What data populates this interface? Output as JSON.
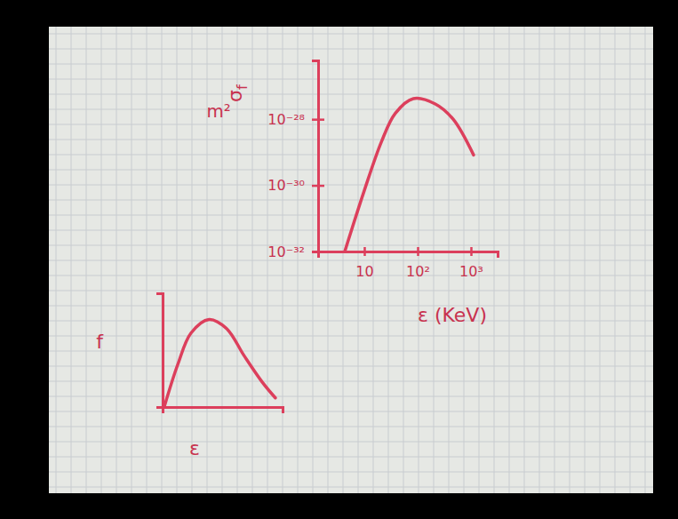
{
  "chart_data": [
    {
      "type": "line",
      "log": true,
      "ylabel": "σf",
      "ylabel_units": "m²",
      "xlabel": "ε (KeV)",
      "x": [
        4.3,
        10,
        21,
        38,
        83,
        214,
        464,
        1120
      ],
      "values": [
        1e-32,
        7e-31,
        2.1e-29,
        1.5e-28,
        4.2e-28,
        2.9e-28,
        1e-28,
        8.3e-30
      ],
      "xlim": [
        1.36,
        3162
      ],
      "ylim": [
        1e-32,
        6e-27
      ],
      "xticks": [
        10,
        {
          "value": 100,
          "label": "10²"
        },
        {
          "value": 1000,
          "label": "10³"
        }
      ],
      "yticks": [
        {
          "value": 1e-32,
          "label": "10⁻³²"
        },
        {
          "value": 1e-30,
          "label": "10⁻³⁰"
        },
        {
          "value": 1e-28,
          "label": "10⁻²⁸"
        }
      ],
      "color": "#dc3f5c"
    },
    {
      "type": "line",
      "ylabel": "f",
      "xlabel": "ε",
      "x": [
        0.04,
        0.38,
        0.71,
        1.16,
        1.6,
        2.04,
        2.49,
        2.82
      ],
      "values": [
        0,
        0.375,
        0.65,
        0.77,
        0.69,
        0.45,
        0.22,
        0.08
      ],
      "xlim": [
        0,
        3
      ],
      "ylim": [
        0,
        1
      ],
      "tick_labels": false,
      "color": "#dc3f5c"
    }
  ]
}
